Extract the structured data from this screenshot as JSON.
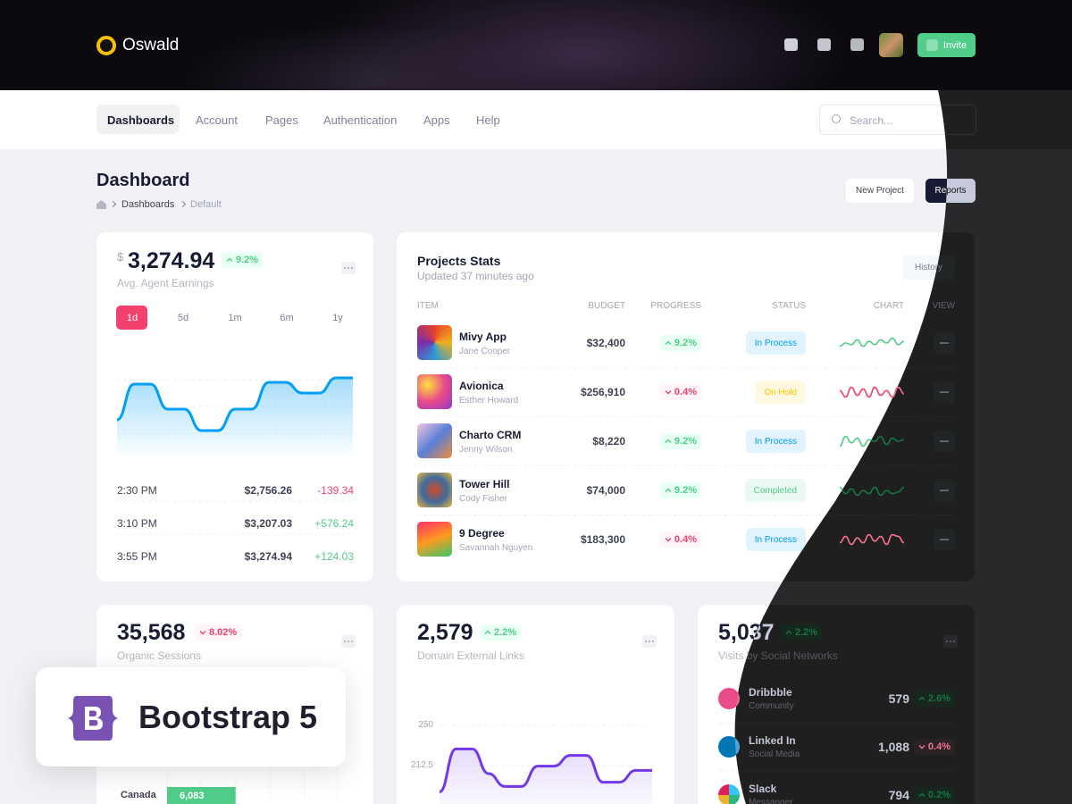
{
  "header": {
    "brand": "Oswald",
    "invite": "Invite"
  },
  "nav": {
    "items": [
      "Dashboards",
      "Account",
      "Pages",
      "Authentication",
      "Apps",
      "Help"
    ],
    "search": "Search..."
  },
  "page": {
    "title": "Dashboard",
    "breadcrumb": [
      "Dashboards",
      "Default"
    ],
    "actions": [
      "New Project",
      "Reports"
    ]
  },
  "earnings": {
    "currency": "$",
    "amount": "3,274.94",
    "change": "9.2%",
    "label": "Avg. Agent Earnings",
    "periods": [
      "1d",
      "5d",
      "1m",
      "6m",
      "1y"
    ],
    "chart": {
      "type": "line",
      "values": [
        40,
        80,
        80,
        52,
        52,
        28,
        28,
        52,
        52,
        82,
        82,
        70,
        70,
        87,
        87
      ],
      "ylim": [
        0,
        100
      ],
      "color": "#009ef7"
    },
    "rows": [
      {
        "time": "2:30 PM",
        "amount": "$2,756.26",
        "change": "-139.34"
      },
      {
        "time": "3:10 PM",
        "amount": "$3,207.03",
        "change": "+576.24"
      },
      {
        "time": "3:55 PM",
        "amount": "$3,274.94",
        "change": "+124.03"
      }
    ]
  },
  "projects": {
    "title": "Projects Stats",
    "subtitle": "Updated 37 minutes ago",
    "button": "History",
    "columns": [
      "ITEM",
      "BUDGET",
      "PROGRESS",
      "STATUS",
      "CHART",
      "VIEW"
    ],
    "rows": [
      {
        "name": "Mivy App",
        "owner": "Jane Cooper",
        "budget": "$32,400",
        "progress": "9.2%",
        "trend": "up",
        "status": "In Process",
        "status_color": "#009ef7",
        "chart": [
          3,
          5,
          4,
          7,
          3,
          6,
          4,
          7,
          5,
          8,
          4,
          6
        ]
      },
      {
        "name": "Avionica",
        "owner": "Esther Howard",
        "budget": "$256,910",
        "progress": "0.4%",
        "trend": "down",
        "status": "On Hold",
        "status_color": "#ffc700",
        "chart": [
          6,
          2,
          8,
          3,
          7,
          2,
          8,
          3,
          6,
          2,
          8,
          4
        ]
      },
      {
        "name": "Charto CRM",
        "owner": "Jenny Wilson",
        "budget": "$8,220",
        "progress": "9.2%",
        "trend": "up",
        "status": "In Process",
        "status_color": "#009ef7",
        "chart": [
          2,
          8,
          4,
          7,
          2,
          6,
          5,
          8,
          3,
          7,
          5,
          6
        ]
      },
      {
        "name": "Tower Hill",
        "owner": "Cody Fisher",
        "budget": "$74,000",
        "progress": "9.2%",
        "trend": "up",
        "status": "Completed",
        "status_color": "#50cd89",
        "chart": [
          7,
          3,
          6,
          2,
          5,
          3,
          7,
          2,
          5,
          3,
          4,
          7
        ]
      },
      {
        "name": "9 Degree",
        "owner": "Savannah Nguyen",
        "budget": "$183,300",
        "progress": "0.4%",
        "trend": "down",
        "status": "In Process",
        "status_color": "#009ef7",
        "chart": [
          3,
          7,
          2,
          6,
          3,
          8,
          4,
          7,
          2,
          8,
          7,
          3
        ]
      }
    ]
  },
  "sessions": {
    "value": "35,568",
    "change": "8.02%",
    "trend": "down",
    "label": "Organic Sessions",
    "chart": {
      "type": "bar",
      "categories": [
        "Canada"
      ],
      "values": [
        6083
      ],
      "value_labels": [
        "6,083"
      ],
      "xlim": [
        0,
        16500
      ],
      "color": "#50cd89"
    }
  },
  "links": {
    "value": "2,579",
    "change": "2.2%",
    "trend": "up",
    "label": "Domain External Links",
    "chart": {
      "type": "line",
      "values": [
        188,
        228,
        228,
        205,
        193,
        193,
        212,
        212,
        222,
        222,
        197,
        197,
        208,
        208
      ],
      "ylim": [
        175,
        262.5
      ],
      "yticks": [
        250,
        212.5
      ],
      "color": "#7239ea"
    }
  },
  "social": {
    "value": "5,037",
    "change": "2.2%",
    "trend": "up",
    "label": "Visits by Social Networks",
    "rows": [
      {
        "name": "Dribbble",
        "sub": "Community",
        "value": "579",
        "change": "2.6%",
        "trend": "up"
      },
      {
        "name": "Linked In",
        "sub": "Social Media",
        "value": "1,088",
        "change": "0.4%",
        "trend": "down"
      },
      {
        "name": "Slack",
        "sub": "Messanger",
        "value": "794",
        "change": "0.2%",
        "trend": "up"
      }
    ]
  },
  "badge": {
    "text": "Bootstrap 5"
  }
}
